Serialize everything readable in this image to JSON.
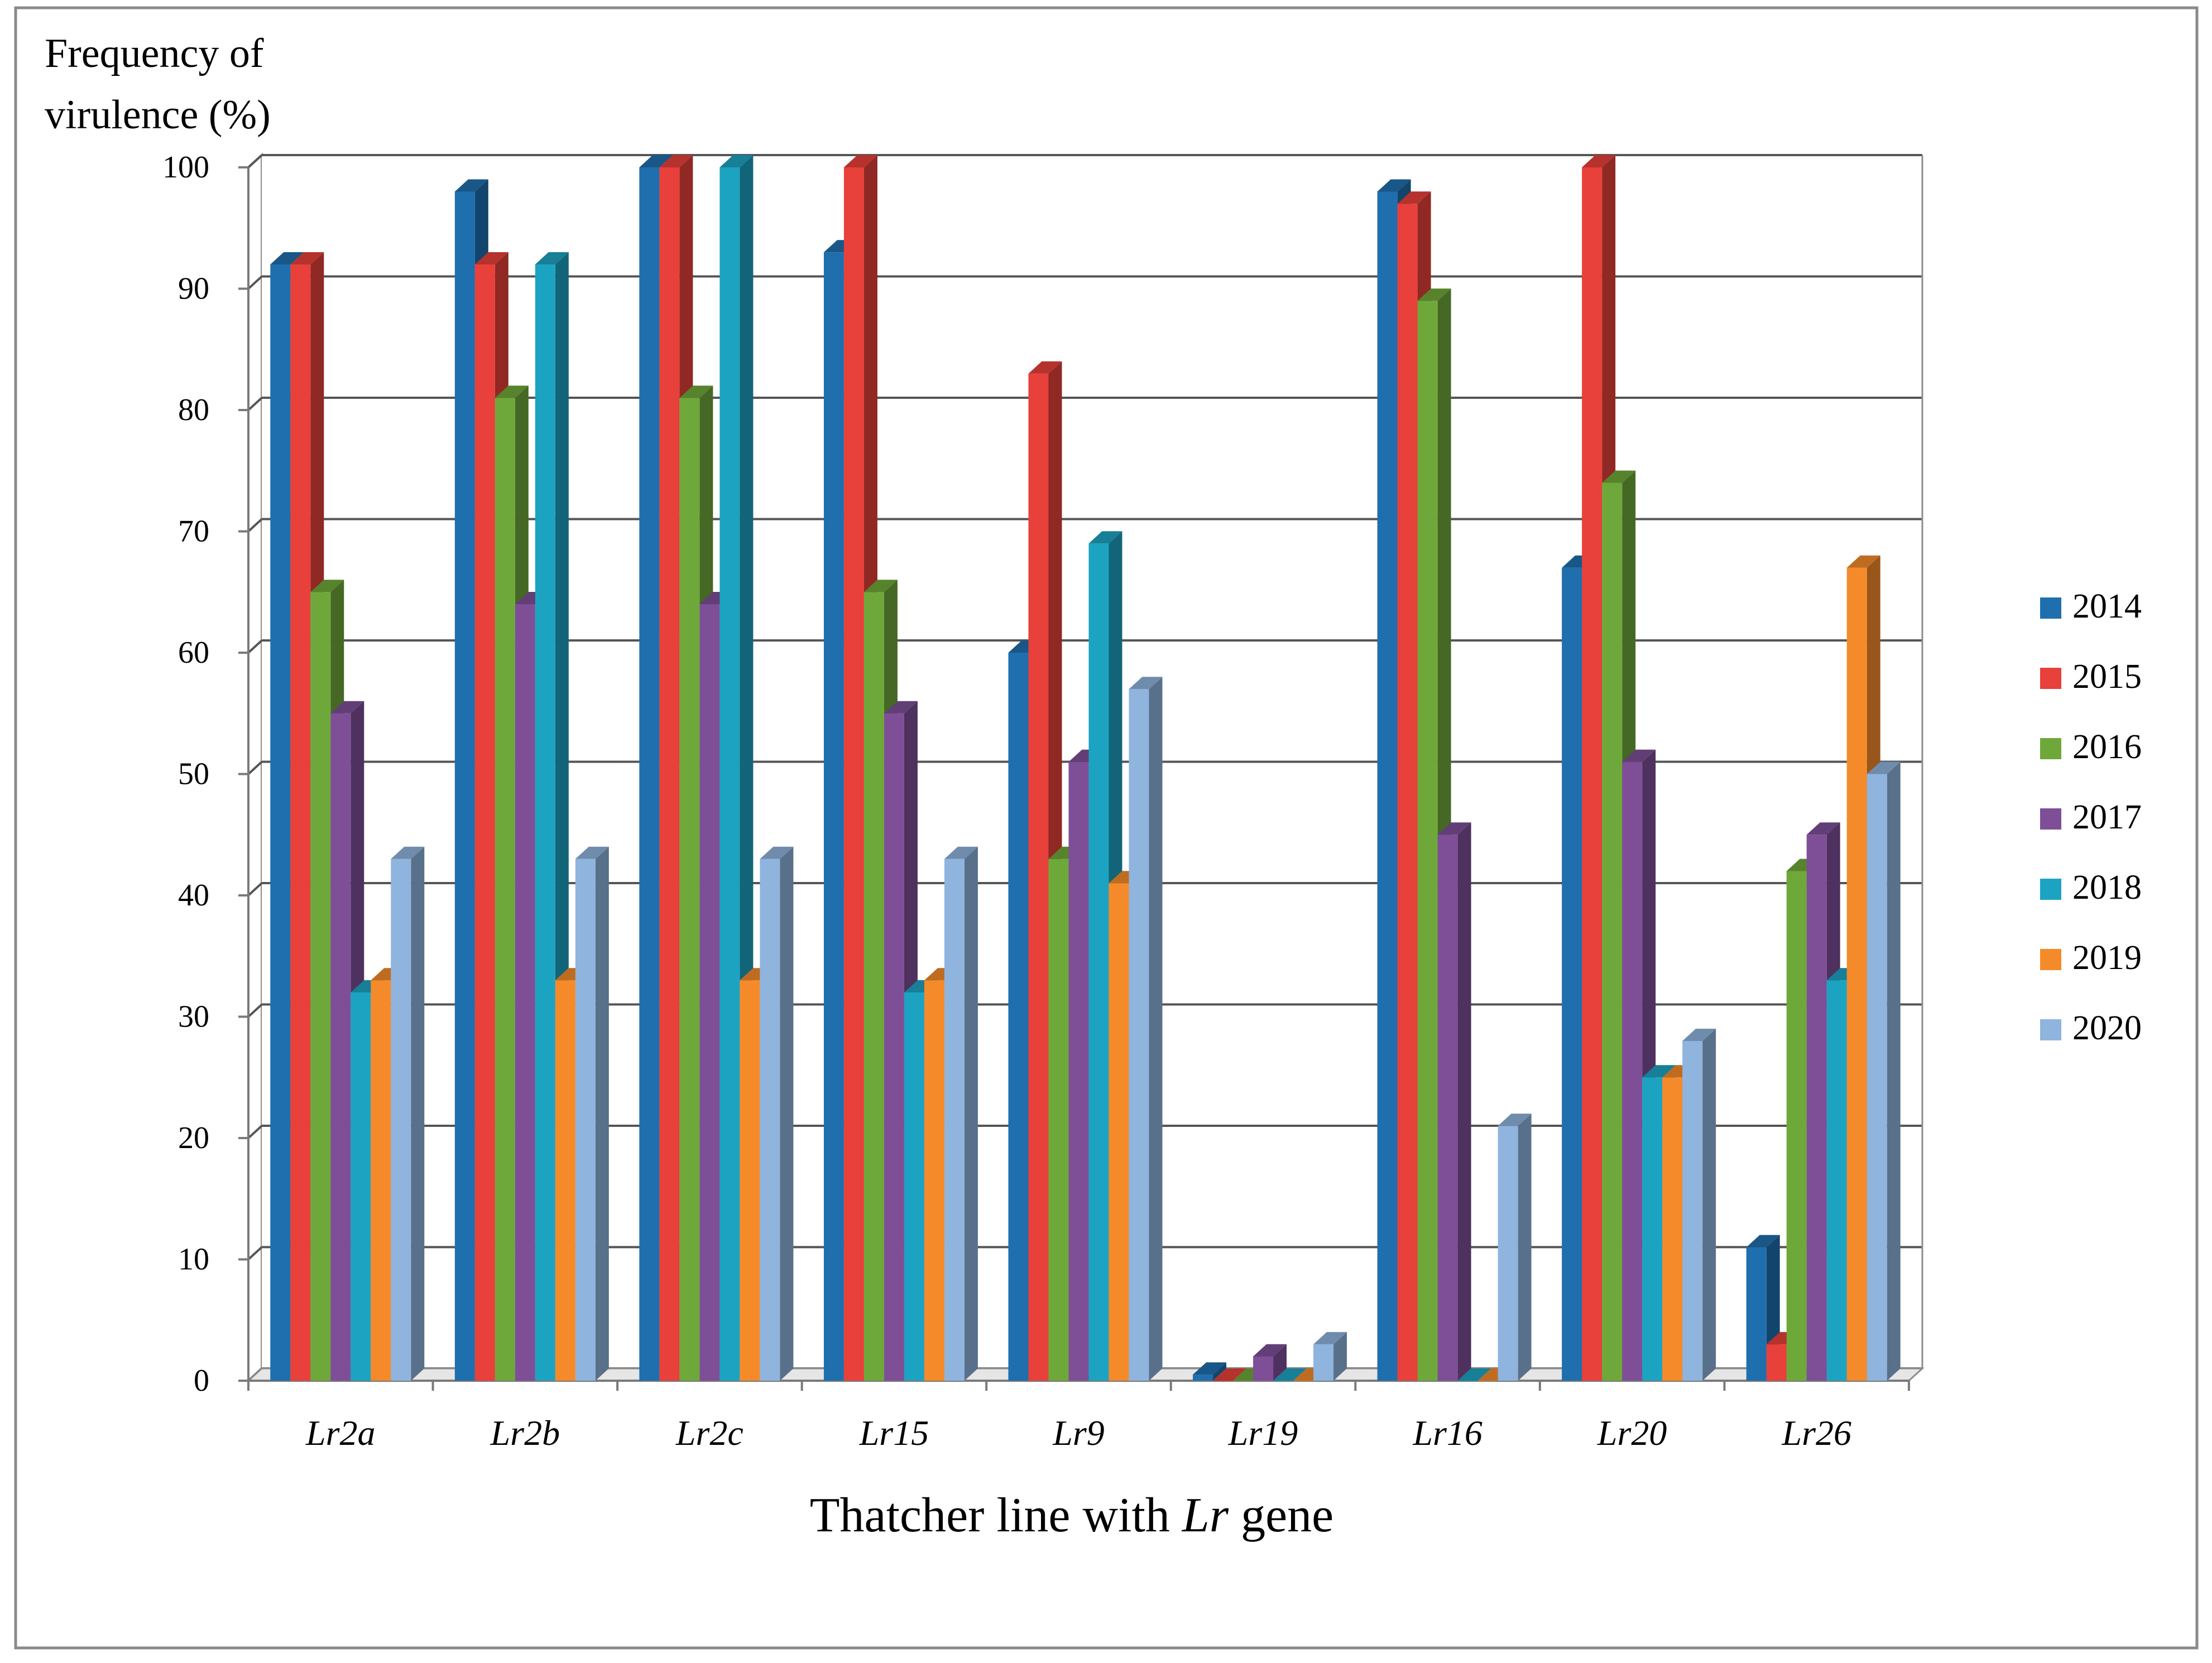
{
  "chart_data": {
    "type": "bar",
    "ylabel_line1": "Frequency of",
    "ylabel_line2": "virulence (%)",
    "xlabel_prefix": "Thatcher line with ",
    "xlabel_italic": "Lr",
    "xlabel_suffix": " gene",
    "ylim": [
      0,
      100
    ],
    "yticks": [
      0,
      10,
      20,
      30,
      40,
      50,
      60,
      70,
      80,
      90,
      100
    ],
    "grid": true,
    "legend_position": "right",
    "categories": [
      "Lr2a",
      "Lr2b",
      "Lr2c",
      "Lr15",
      "Lr9",
      "Lr19",
      "Lr16",
      "Lr20",
      "Lr26"
    ],
    "series": [
      {
        "name": "2014",
        "color": "#1F6FAE",
        "values": [
          92,
          98,
          100,
          93,
          60,
          0.5,
          98,
          67,
          11
        ]
      },
      {
        "name": "2015",
        "color": "#E8403A",
        "values": [
          92,
          92,
          100,
          100,
          83,
          0,
          97,
          100,
          3
        ]
      },
      {
        "name": "2016",
        "color": "#6FA83A",
        "values": [
          65,
          81,
          81,
          65,
          43,
          0,
          89,
          74,
          42
        ]
      },
      {
        "name": "2017",
        "color": "#7E4F97",
        "values": [
          55,
          64,
          64,
          55,
          51,
          2,
          45,
          51,
          45
        ]
      },
      {
        "name": "2018",
        "color": "#1DA3C2",
        "values": [
          32,
          92,
          100,
          32,
          69,
          0,
          0,
          25,
          33
        ]
      },
      {
        "name": "2019",
        "color": "#F58A2A",
        "values": [
          33,
          33,
          33,
          33,
          41,
          0,
          0,
          25,
          67
        ]
      },
      {
        "name": "2020",
        "color": "#8FB4DE",
        "values": [
          43,
          43,
          43,
          43,
          57,
          3,
          21,
          28,
          50
        ]
      }
    ]
  }
}
